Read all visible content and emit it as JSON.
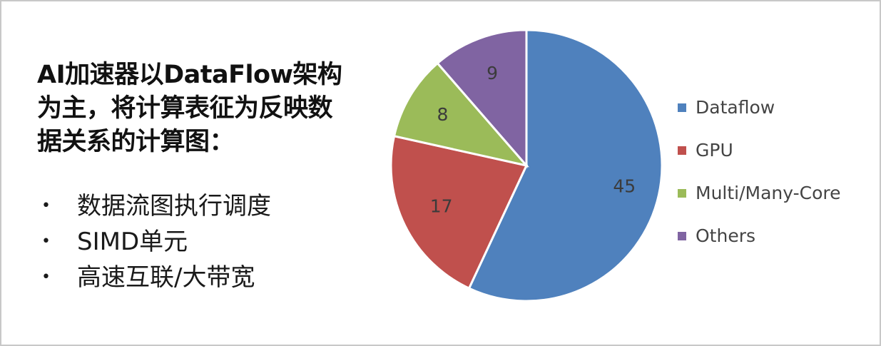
{
  "slide": {
    "heading": "AI加速器以DataFlow架构为主，将计算表征为反映数据关系的计算图：",
    "bullets": [
      "数据流图执行调度",
      "SIMD单元",
      "高速互联/大带宽"
    ]
  },
  "chart_data": {
    "type": "pie",
    "categories": [
      "Dataflow",
      "GPU",
      "Multi/Many-Core",
      "Others"
    ],
    "values": [
      45,
      17,
      8,
      9
    ],
    "colors": [
      "#4f81bd",
      "#c0504d",
      "#9bbb59",
      "#8064a2"
    ],
    "data_labels": [
      "45",
      "17",
      "8",
      "9"
    ],
    "legend_position": "right"
  }
}
